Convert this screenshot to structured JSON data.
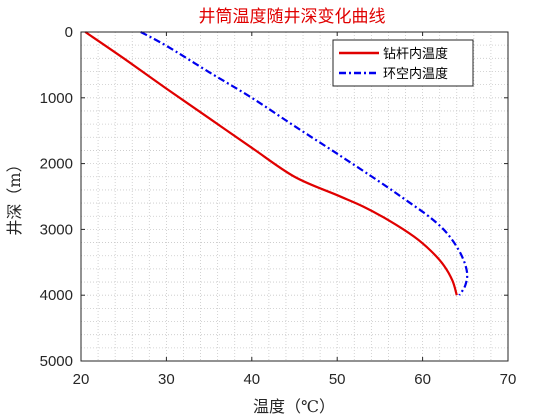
{
  "chart_data": {
    "type": "line",
    "title": "井筒温度随井深变化曲线",
    "xlabel": "温度（℃）",
    "ylabel": "井深（m）",
    "xlim": [
      20,
      70
    ],
    "ylim": [
      0,
      5000
    ],
    "y_reversed": true,
    "grid": "minor-dotted",
    "legend_position": "top-right",
    "x_ticks": [
      20,
      30,
      40,
      50,
      60,
      70
    ],
    "y_ticks": [
      0,
      1000,
      2000,
      3000,
      4000,
      5000
    ],
    "series": [
      {
        "name": "钻杆内温度",
        "color": "#e00000",
        "style": "solid",
        "points": [
          [
            20.5,
            0
          ],
          [
            25,
            400
          ],
          [
            30,
            860
          ],
          [
            35,
            1310
          ],
          [
            40,
            1760
          ],
          [
            45,
            2200
          ],
          [
            50,
            2480
          ],
          [
            53,
            2650
          ],
          [
            56,
            2860
          ],
          [
            59,
            3110
          ],
          [
            61,
            3330
          ],
          [
            62.5,
            3550
          ],
          [
            63.5,
            3780
          ],
          [
            64,
            4000
          ]
        ]
      },
      {
        "name": "环空内温度",
        "color": "#0000ee",
        "style": "dashdot",
        "points": [
          [
            27,
            0
          ],
          [
            30,
            210
          ],
          [
            35,
            610
          ],
          [
            40,
            1000
          ],
          [
            45,
            1430
          ],
          [
            50,
            1850
          ],
          [
            55,
            2280
          ],
          [
            58,
            2550
          ],
          [
            61,
            2830
          ],
          [
            63,
            3080
          ],
          [
            64.5,
            3380
          ],
          [
            65.2,
            3650
          ],
          [
            65,
            3850
          ],
          [
            64.3,
            4000
          ]
        ]
      }
    ]
  }
}
